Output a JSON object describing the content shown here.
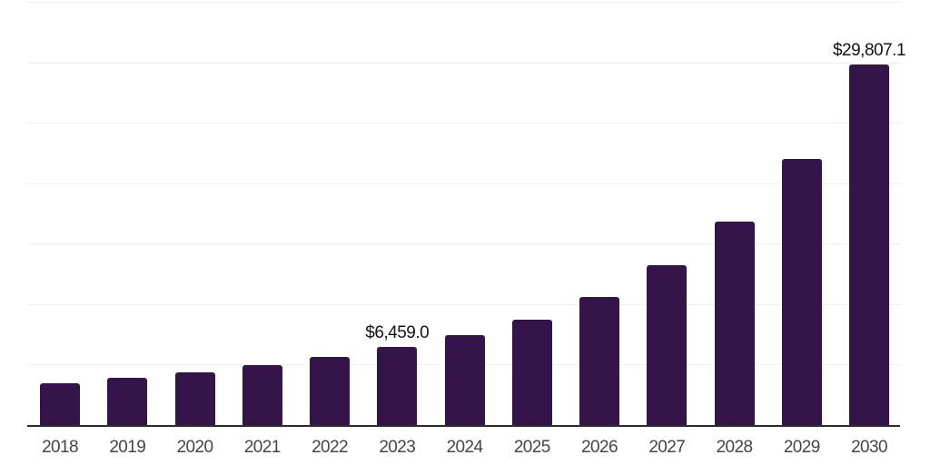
{
  "chart_data": {
    "type": "bar",
    "title": "",
    "xlabel": "",
    "ylabel": "",
    "categories": [
      "2018",
      "2019",
      "2020",
      "2021",
      "2022",
      "2023",
      "2024",
      "2025",
      "2026",
      "2027",
      "2028",
      "2029",
      "2030"
    ],
    "values": [
      3430,
      3880,
      4330,
      4930,
      5600,
      6459.0,
      7470,
      8740,
      10610,
      13220,
      16810,
      22040,
      29807.1
    ],
    "labeled_points": [
      {
        "category": "2023",
        "label": "$6,459.0"
      },
      {
        "category": "2030",
        "label": "$29,807.1"
      }
    ],
    "ylim": [
      0,
      35000
    ],
    "gridline_interval": 5000,
    "grid": "horizontal",
    "legend_position": "none",
    "y_axis_labels_visible": false
  },
  "colors": {
    "background": "#ffffff",
    "bar": "#341449",
    "axis_line": "#2b2b2b",
    "gridline": "#f0f0f0",
    "tick_label": "#454545",
    "data_label": "#141414"
  }
}
